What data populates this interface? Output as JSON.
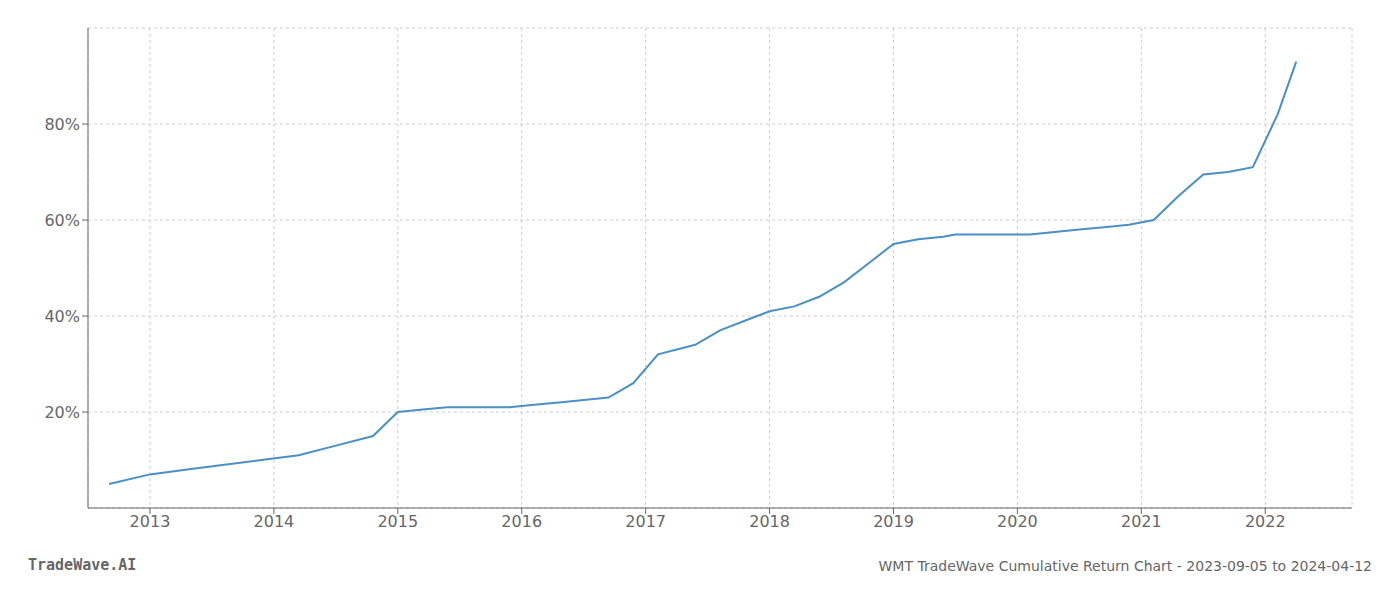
{
  "chart_data": {
    "type": "line",
    "title": "WMT TradeWave Cumulative Return Chart - 2023-09-05 to 2024-04-12",
    "annotations": [
      "TradeWave.AI"
    ],
    "x": [
      2012.67,
      2013.0,
      2013.3,
      2013.6,
      2013.9,
      2014.2,
      2014.5,
      2014.8,
      2015.0,
      2015.2,
      2015.4,
      2015.6,
      2015.9,
      2016.1,
      2016.3,
      2016.5,
      2016.7,
      2016.9,
      2017.1,
      2017.4,
      2017.6,
      2017.8,
      2018.0,
      2018.2,
      2018.4,
      2018.6,
      2018.8,
      2019.0,
      2019.2,
      2019.4,
      2019.5,
      2019.7,
      2019.9,
      2020.1,
      2020.3,
      2020.5,
      2020.7,
      2020.9,
      2021.1,
      2021.3,
      2021.5,
      2021.7,
      2021.9,
      2022.1,
      2022.25
    ],
    "values": [
      5,
      7,
      8,
      9,
      10,
      11,
      13,
      15,
      20,
      20.5,
      21,
      21,
      21,
      21.5,
      22,
      22.5,
      23,
      26,
      32,
      34,
      37,
      39,
      41,
      42,
      44,
      47,
      51,
      55,
      56,
      56.5,
      57,
      57,
      57,
      57,
      57.5,
      58,
      58.5,
      59,
      60,
      65,
      69.5,
      70,
      71,
      82,
      93
    ],
    "color": "#4a90c4",
    "xlim": [
      2012.5,
      2022.7
    ],
    "xticks": [
      2013,
      2014,
      2015,
      2016,
      2017,
      2018,
      2019,
      2020,
      2021,
      2022
    ],
    "ylim": [
      0,
      100
    ],
    "yticks": [
      {
        "value": 20,
        "label": "20%"
      },
      {
        "value": 40,
        "label": "40%"
      },
      {
        "value": 60,
        "label": "60%"
      },
      {
        "value": 80,
        "label": "80%"
      }
    ],
    "grid": true
  }
}
